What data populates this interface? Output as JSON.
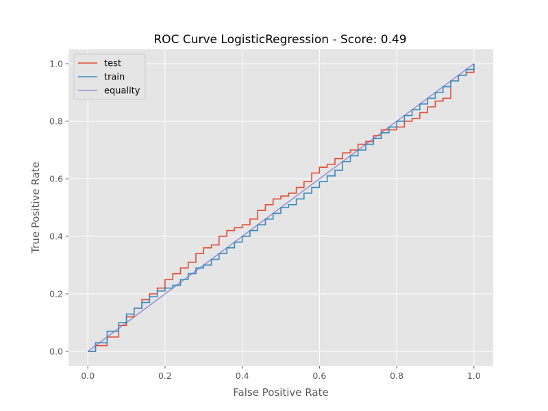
{
  "chart_data": {
    "type": "line",
    "title": "ROC Curve LogisticRegression - Score: 0.49",
    "xlabel": "False Positive Rate",
    "ylabel": "True Positive Rate",
    "xlim": [
      -0.05,
      1.05
    ],
    "ylim": [
      -0.05,
      1.05
    ],
    "xticks": [
      "0.0",
      "0.2",
      "0.4",
      "0.6",
      "0.8",
      "1.0"
    ],
    "yticks": [
      "0.0",
      "0.2",
      "0.4",
      "0.6",
      "0.8",
      "1.0"
    ],
    "grid": true,
    "legend_position": "upper-left",
    "background_color": "#e5e5e5",
    "grid_color": "#ffffff",
    "series": [
      {
        "name": "test",
        "color": "#e24a33",
        "x": [
          0.0,
          0.02,
          0.05,
          0.08,
          0.1,
          0.12,
          0.14,
          0.16,
          0.18,
          0.2,
          0.22,
          0.24,
          0.26,
          0.28,
          0.3,
          0.32,
          0.34,
          0.36,
          0.38,
          0.4,
          0.42,
          0.44,
          0.46,
          0.48,
          0.5,
          0.52,
          0.54,
          0.56,
          0.58,
          0.6,
          0.62,
          0.64,
          0.66,
          0.68,
          0.7,
          0.72,
          0.74,
          0.76,
          0.78,
          0.8,
          0.82,
          0.84,
          0.86,
          0.88,
          0.9,
          0.92,
          0.94,
          0.96,
          0.98,
          1.0
        ],
        "y": [
          0.0,
          0.02,
          0.05,
          0.09,
          0.12,
          0.15,
          0.18,
          0.2,
          0.22,
          0.25,
          0.27,
          0.29,
          0.31,
          0.34,
          0.36,
          0.37,
          0.4,
          0.42,
          0.43,
          0.44,
          0.46,
          0.49,
          0.51,
          0.53,
          0.54,
          0.55,
          0.57,
          0.59,
          0.62,
          0.64,
          0.65,
          0.67,
          0.69,
          0.7,
          0.72,
          0.73,
          0.75,
          0.77,
          0.77,
          0.78,
          0.8,
          0.81,
          0.83,
          0.85,
          0.87,
          0.88,
          0.94,
          0.96,
          0.97,
          1.0
        ]
      },
      {
        "name": "train",
        "color": "#348abd",
        "x": [
          0.0,
          0.02,
          0.05,
          0.08,
          0.1,
          0.12,
          0.14,
          0.16,
          0.18,
          0.2,
          0.22,
          0.24,
          0.26,
          0.28,
          0.3,
          0.32,
          0.34,
          0.36,
          0.38,
          0.4,
          0.42,
          0.44,
          0.46,
          0.48,
          0.5,
          0.52,
          0.54,
          0.56,
          0.58,
          0.6,
          0.62,
          0.64,
          0.66,
          0.68,
          0.7,
          0.72,
          0.74,
          0.76,
          0.78,
          0.8,
          0.82,
          0.84,
          0.86,
          0.88,
          0.9,
          0.92,
          0.94,
          0.96,
          0.98,
          1.0
        ],
        "y": [
          0.0,
          0.03,
          0.07,
          0.1,
          0.13,
          0.15,
          0.17,
          0.19,
          0.21,
          0.22,
          0.23,
          0.25,
          0.27,
          0.29,
          0.3,
          0.32,
          0.34,
          0.36,
          0.38,
          0.4,
          0.42,
          0.44,
          0.46,
          0.48,
          0.5,
          0.51,
          0.53,
          0.55,
          0.57,
          0.59,
          0.61,
          0.63,
          0.66,
          0.68,
          0.7,
          0.72,
          0.74,
          0.76,
          0.78,
          0.8,
          0.82,
          0.84,
          0.86,
          0.88,
          0.9,
          0.92,
          0.94,
          0.96,
          0.98,
          1.0
        ]
      },
      {
        "name": "equality",
        "color": "#988ed5",
        "x": [
          0.0,
          1.0
        ],
        "y": [
          0.0,
          1.0
        ]
      }
    ]
  }
}
